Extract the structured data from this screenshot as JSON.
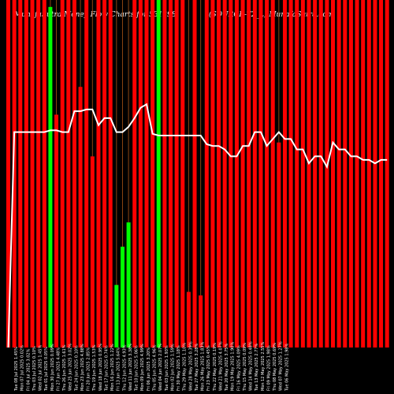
{
  "chart_data": {
    "type": "bar",
    "title_left": "MunafaSutra Money Flow Charts for 531398",
    "title_right": "(SOURCE-T2_L) MunafaSutra.com",
    "ylim": [
      0,
      100
    ],
    "line_ylim": [
      0,
      100
    ],
    "bar_colors": {
      "up": "#00ff00",
      "down": "#ff0000"
    },
    "line_color": "#ffffff",
    "grid_color": "#8b4513",
    "bars": [
      {
        "label": "Tue 08 Jul 2025 1.45%",
        "value": 100,
        "color": "down"
      },
      {
        "label": "Mon 07 Jul 2025 0.02%",
        "value": 100,
        "color": "down"
      },
      {
        "label": "Fri 04 Jul 2025 3.02%",
        "value": 100,
        "color": "down"
      },
      {
        "label": "Thu 03 Jul 2025 0.10%",
        "value": 100,
        "color": "down"
      },
      {
        "label": "Wed 02 Jul 2025 1.45%",
        "value": 100,
        "color": "down"
      },
      {
        "label": "Tue 01 Jul 2025 0.05%",
        "value": 100,
        "color": "down"
      },
      {
        "label": "Mon 30 Jun 2025 0.09%",
        "value": 100,
        "color": "down"
      },
      {
        "label": "Fri 27 Jun 2025 4.48%",
        "value": 98,
        "color": "up"
      },
      {
        "label": "Thu 26 Jun 2025 1.61%",
        "value": 67,
        "color": "down"
      },
      {
        "label": "Wed 25 Jun 2025 3.02%",
        "value": 100,
        "color": "down"
      },
      {
        "label": "Tue 24 Jun 2025 0.10%",
        "value": 100,
        "color": "down"
      },
      {
        "label": "Mon 23 Jun 2025 4.88%",
        "value": 100,
        "color": "down"
      },
      {
        "label": "Fri 20 Jun 2025 2.85%",
        "value": 75,
        "color": "down"
      },
      {
        "label": "Thu 19 Jun 2025 1.53%",
        "value": 100,
        "color": "down"
      },
      {
        "label": "Wed 18 Jun 2025 0.95%",
        "value": 55,
        "color": "down"
      },
      {
        "label": "Tue 17 Jun 2025 0.74%",
        "value": 100,
        "color": "down"
      },
      {
        "label": "Mon 16 Jun 2025 1.22%",
        "value": 100,
        "color": "down"
      },
      {
        "label": "Fri 13 Jun 2025 5.64%",
        "value": 100,
        "color": "down"
      },
      {
        "label": "Thu 12 Jun 2025 4.93%",
        "value": 18,
        "color": "up"
      },
      {
        "label": "Wed 11 Jun 2025 3.38%",
        "value": 29,
        "color": "up"
      },
      {
        "label": "Tue 10 Jun 2025 5.06%",
        "value": 36,
        "color": "up"
      },
      {
        "label": "Mon 09 Jun 2025 4.99%",
        "value": 100,
        "color": "down"
      },
      {
        "label": "Fri 06 Jun 2025 3.20%",
        "value": 100,
        "color": "down"
      },
      {
        "label": "Thu 05 Jun 2025 4.96%",
        "value": 100,
        "color": "down"
      },
      {
        "label": "Wed 04 Jun 2025 2.07%",
        "value": 100,
        "color": "down"
      },
      {
        "label": "Tue 03 Jun 2025 1.93%",
        "value": 100,
        "color": "up"
      },
      {
        "label": "Mon 02 Jun 2025 1.59%",
        "value": 100,
        "color": "down"
      },
      {
        "label": "Fri 30 May 2025 1.18%",
        "value": 100,
        "color": "down"
      },
      {
        "label": "Thu 29 May 2025 1.10%",
        "value": 100,
        "color": "down"
      },
      {
        "label": "Wed 28 May 2025 0.39%",
        "value": 100,
        "color": "down"
      },
      {
        "label": "Tue 27 May 2025 3.28%",
        "value": 16,
        "color": "down"
      },
      {
        "label": "Mon 26 May 2025 1.83%",
        "value": 100,
        "color": "down"
      },
      {
        "label": "Fri 23 May 2025 0.45%",
        "value": 15,
        "color": "down"
      },
      {
        "label": "Thu 22 May 2025 0.19%",
        "value": 100,
        "color": "down"
      },
      {
        "label": "Wed 21 May 2025 4.07%",
        "value": 100,
        "color": "down"
      },
      {
        "label": "Tue 20 May 2025 3.75%",
        "value": 100,
        "color": "down"
      },
      {
        "label": "Mon 19 May 2025 1.90%",
        "value": 100,
        "color": "down"
      },
      {
        "label": "Fri 16 May 2025 4.09%",
        "value": 100,
        "color": "down"
      },
      {
        "label": "Thu 15 May 2025 0.09%",
        "value": 100,
        "color": "down"
      },
      {
        "label": "Wed 14 May 2025 0.48%",
        "value": 100,
        "color": "down"
      },
      {
        "label": "Tue 13 May 2025 2.77%",
        "value": 100,
        "color": "down"
      },
      {
        "label": "Mon 12 May 2025 2.55%",
        "value": 100,
        "color": "down"
      },
      {
        "label": "Fri 09 May 2025 1.98%",
        "value": 100,
        "color": "down"
      },
      {
        "label": "Thu 08 May 2025 0.69%",
        "value": 100,
        "color": "down"
      },
      {
        "label": "Wed 07 May 2025 1.27%",
        "value": 100,
        "color": "down"
      },
      {
        "label": "Tue 06 May 2025 1.98%",
        "value": 59,
        "color": "down"
      },
      {
        "label": "Mon 05 May 2025 0.97%",
        "value": 100,
        "color": "down"
      },
      {
        "label": "Fri 02 May 2025 2.96%",
        "value": 100,
        "color": "down"
      },
      {
        "label": "Wed 30 Apr 2025 0.99%",
        "value": 100,
        "color": "down"
      },
      {
        "label": "Tue 29 Apr 2025 1.64%",
        "value": 100,
        "color": "down"
      },
      {
        "label": "Mon 28 Apr 2025 0.03%",
        "value": 100,
        "color": "down"
      },
      {
        "label": "Fri 25 Apr 2025 1.79%",
        "value": 100,
        "color": "down"
      },
      {
        "label": "Thu 24 Apr 2025 0.45%",
        "value": 100,
        "color": "down"
      },
      {
        "label": "Wed 23 Apr 2025 0.43%",
        "value": 100,
        "color": "down"
      },
      {
        "label": "Tue 22 Apr 2025 4.92%",
        "value": 100,
        "color": "down"
      },
      {
        "label": "Mon 21 Apr 2025 2.31%",
        "value": 100,
        "color": "down"
      },
      {
        "label": "Thu 17 Apr 2025 0.41%",
        "value": 100,
        "color": "down"
      },
      {
        "label": "Wed 16 Apr 2025 0.33%",
        "value": 100,
        "color": "down"
      },
      {
        "label": "Tue 15 Apr 2025 0.92%",
        "value": 100,
        "color": "down"
      },
      {
        "label": "Fri 11 Apr 2025 2.51%",
        "value": 100,
        "color": "down"
      },
      {
        "label": "Thu 10 Apr 2025 2.63%",
        "value": 100,
        "color": "down"
      },
      {
        "label": "Wed 09 Apr 2025 1.71%",
        "value": 100,
        "color": "down"
      },
      {
        "label": "Tue 08 Apr 2025 0.88%",
        "value": 100,
        "color": "down"
      },
      {
        "label": "Mon 07 Apr 2025 0.36%",
        "value": 100,
        "color": "down"
      },
      {
        "label": "Fri 04 Apr 2025 3.18%",
        "value": 100,
        "color": "down"
      },
      {
        "label": "Thu 03 Apr 2025 1.60%",
        "value": 100,
        "color": "down"
      },
      {
        "label": "Wed 02 Apr 2025 0.98%",
        "value": 100,
        "color": "down"
      },
      {
        "label": "Tue 01 Apr 2025 2.41%",
        "value": 100,
        "color": "down"
      },
      {
        "label": "Fri 28 Mar 2025 0.74%",
        "value": 100,
        "color": "down"
      },
      {
        "label": "Thu 27 Mar 2025 2.76%",
        "value": 100,
        "color": "down"
      },
      {
        "label": "Wed 26 Mar 2025 0.48%",
        "value": 100,
        "color": "down"
      },
      {
        "label": "Tue 25 Mar 2025 0.81%",
        "value": 100,
        "color": "down"
      },
      {
        "label": "Mon 24 Mar 2025 0.25%",
        "value": 100,
        "color": "down"
      },
      {
        "label": "Fri 21 Mar 2025 1.17%",
        "value": 100,
        "color": "down"
      },
      {
        "label": "Thu 20 Mar 2025 0.80%",
        "value": 100,
        "color": "down"
      },
      {
        "label": "Wed 19 Mar 2025 0.92%",
        "value": 100,
        "color": "down"
      },
      {
        "label": "Tue 18 Mar 2025 0.83%",
        "value": 63,
        "color": "down"
      },
      {
        "label": "Mon 17 Mar 2025 1.06%",
        "value": 100,
        "color": "down"
      },
      {
        "label": "Thu 13 Mar 2025 0.11%",
        "value": 100,
        "color": "down"
      },
      {
        "label": "Wed 12 Mar 2025 1.02%",
        "value": 100,
        "color": "down"
      },
      {
        "label": "Tue 11 Mar 2025 3.04%",
        "value": 100,
        "color": "down"
      },
      {
        "label": "Mon 10 Mar 2025 3.02%",
        "value": 100,
        "color": "down"
      },
      {
        "label": "Fri 07 Mar 2025 1.37%",
        "value": 100,
        "color": "down"
      },
      {
        "label": "Thu 06 Mar 2025 0.23%",
        "value": 100,
        "color": "down"
      }
    ],
    "visible_labels": [
      "Tue 08 Jul 2025 1.45%",
      "Mon 07 Jul 2025 0.02%",
      "Fri 04 Jul 2025 3.02%",
      "Thu 03 Jul 2025 0.10%",
      "Wed 02 Jul 2025 1.45%",
      "Tue 01 Jul 2025 0.05%",
      "Mon 30 Jun 2025 0.09%",
      "Fri 27 Jun 2025 4.48%",
      "Thu 26 Jun 2025 1.61%",
      "Wed 25 Jun 2025 3.02%",
      "Tue 24 Jun 2025 0.10%",
      "Mon 23 Jun 2025 4.88%",
      "Fri 20 Jun 2025 2.85%",
      "Thu 19 Jun 2025 1.53%",
      "Wed 18 Jun 2025 0.95%",
      "Tue 17 Jun 2025 0.74%",
      "Mon 16 Jun 2025 1.22%",
      "Fri 13 Jun 2025 5.64%",
      "Thu 12 Jun 2025 4.93%",
      "Wed 11 Jun 2025 3.38%",
      "Tue 10 Jun 2025 5.06%",
      "Mon 09 Jun 2025 4.99%",
      "Fri 06 Jun 2025 3.20%",
      "Thu 05 Jun 2025 4.96%",
      "Wed 04 Jun 2025 2.07%",
      "Tue 03 Jun 2025 1.93%",
      "Mon 02 Jun 2025 1.59%",
      "Fri 30 May 2025 1.18%",
      "Thu 29 May 2025 1.10%",
      "Wed 28 May 2025 0.39%",
      "Tue 27 May 2025 3.28%",
      "Mon 26 May 2025 1.83%",
      "Fri 23 May 2025 0.45%",
      "Thu 22 May 2025 0.19%",
      "Wed 21 May 2025 4.07%",
      "Tue 20 May 2025 3.75%",
      "Mon 19 May 2025 1.90%",
      "Fri 16 May 2025 4.09%",
      "Thu 15 May 2025 0.09%",
      "Wed 14 May 2025 0.48%",
      "Tue 13 May 2025 2.77%",
      "Mon 12 May 2025 2.55%",
      "Fri 09 May 2025 1.98%",
      "Thu 08 May 2025 0.69%",
      "Wed 07 May 2025 1.27%",
      "Tue 06 May 2025 1.98%"
    ],
    "line_values": [
      0,
      62,
      62,
      62,
      62,
      62,
      62,
      62.5,
      62.5,
      62,
      62,
      68,
      68,
      68.5,
      68.5,
      64,
      66,
      66,
      62,
      62,
      63.5,
      66,
      69,
      70,
      61.5,
      61,
      61,
      61,
      61,
      61,
      61,
      61,
      61,
      58.5,
      58,
      58,
      57,
      55,
      55,
      58,
      58,
      62,
      62,
      58,
      60,
      62,
      60,
      60,
      57,
      57,
      53,
      55,
      55,
      52,
      59,
      57,
      57,
      55,
      55,
      54,
      54,
      53,
      54,
      54,
      54,
      57,
      57,
      56,
      56,
      55,
      56,
      58,
      52,
      52,
      52,
      54,
      54,
      54,
      54,
      54,
      54,
      54,
      54,
      54
    ]
  }
}
